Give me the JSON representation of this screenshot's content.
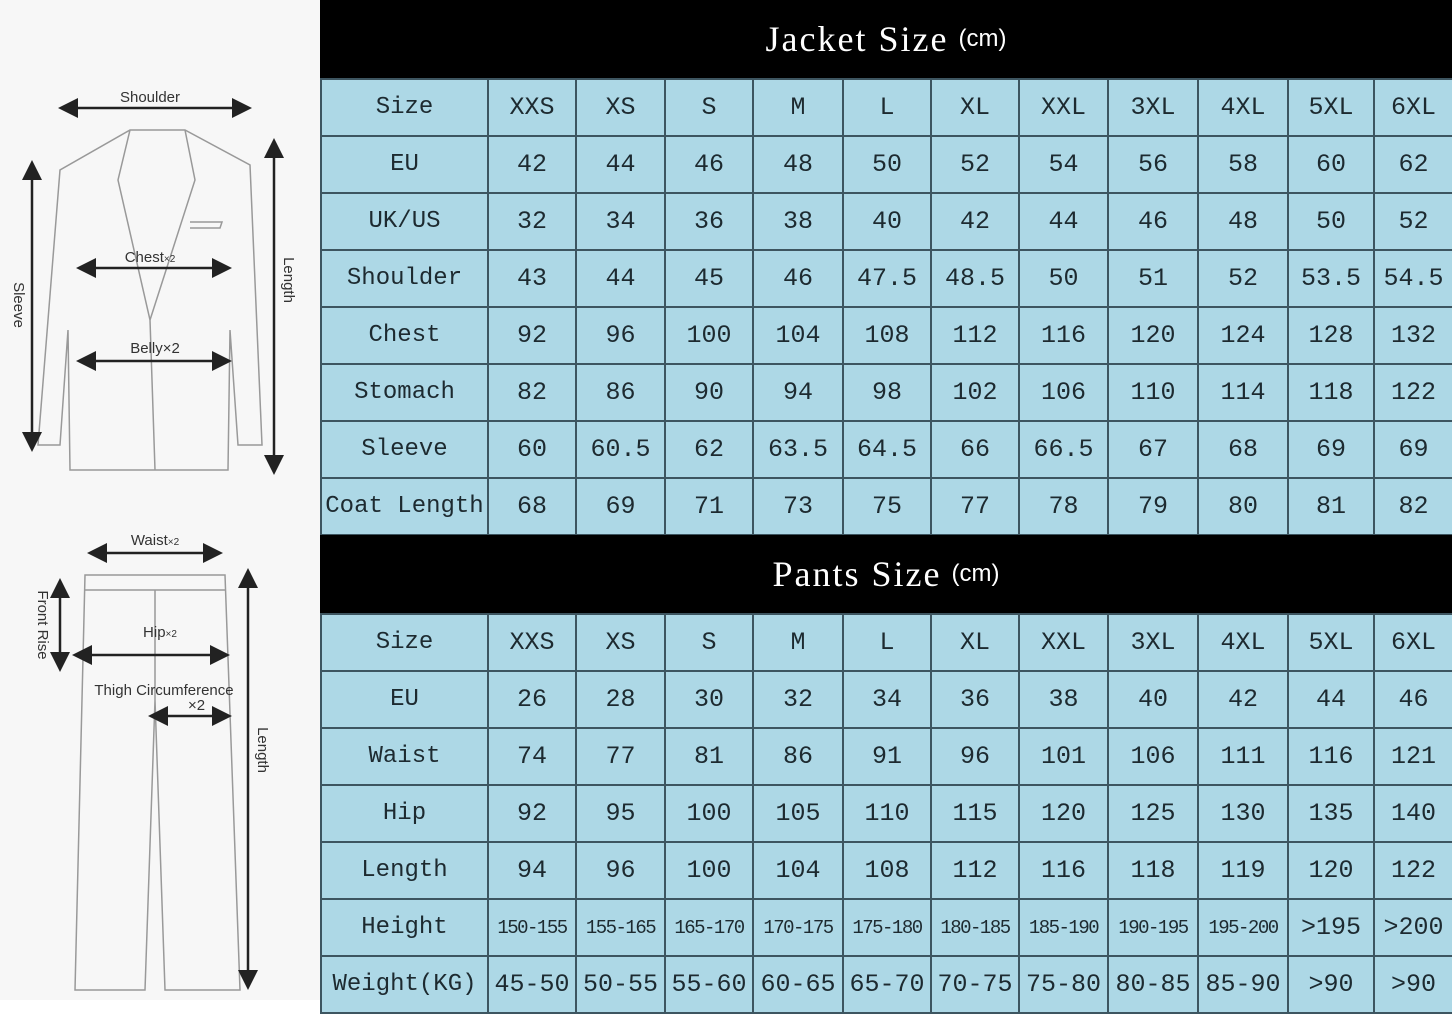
{
  "diagram": {
    "jacket_labels": {
      "shoulder": "Shoulder",
      "chest": "Chest",
      "chest_mult": "×2",
      "belly": "Belly×2",
      "sleeve": "Sleeve",
      "length": "Length"
    },
    "pants_labels": {
      "waist": "Waist",
      "waist_mult": "×2",
      "front_rise": "Front Rise",
      "hip": "Hip",
      "hip_mult": "×2",
      "thigh": "Thigh Circumference",
      "thigh_mult": "×2",
      "length": "Length"
    }
  },
  "jacket": {
    "title": "Jacket Size",
    "unit": "(cm)",
    "rows": [
      [
        "Size",
        "XXS",
        "XS",
        "S",
        "M",
        "L",
        "XL",
        "XXL",
        "3XL",
        "4XL",
        "5XL",
        "6XL"
      ],
      [
        "EU",
        "42",
        "44",
        "46",
        "48",
        "50",
        "52",
        "54",
        "56",
        "58",
        "60",
        "62"
      ],
      [
        "UK/US",
        "32",
        "34",
        "36",
        "38",
        "40",
        "42",
        "44",
        "46",
        "48",
        "50",
        "52"
      ],
      [
        "Shoulder",
        "43",
        "44",
        "45",
        "46",
        "47.5",
        "48.5",
        "50",
        "51",
        "52",
        "53.5",
        "54.5"
      ],
      [
        "Chest",
        "92",
        "96",
        "100",
        "104",
        "108",
        "112",
        "116",
        "120",
        "124",
        "128",
        "132"
      ],
      [
        "Stomach",
        "82",
        "86",
        "90",
        "94",
        "98",
        "102",
        "106",
        "110",
        "114",
        "118",
        "122"
      ],
      [
        "Sleeve",
        "60",
        "60.5",
        "62",
        "63.5",
        "64.5",
        "66",
        "66.5",
        "67",
        "68",
        "69",
        "69"
      ],
      [
        "Coat Length",
        "68",
        "69",
        "71",
        "73",
        "75",
        "77",
        "78",
        "79",
        "80",
        "81",
        "82"
      ]
    ]
  },
  "pants": {
    "title": "Pants Size",
    "unit": "(cm)",
    "rows": [
      [
        "Size",
        "XXS",
        "XS",
        "S",
        "M",
        "L",
        "XL",
        "XXL",
        "3XL",
        "4XL",
        "5XL",
        "6XL"
      ],
      [
        "EU",
        "26",
        "28",
        "30",
        "32",
        "34",
        "36",
        "38",
        "40",
        "42",
        "44",
        "46"
      ],
      [
        "Waist",
        "74",
        "77",
        "81",
        "86",
        "91",
        "96",
        "101",
        "106",
        "111",
        "116",
        "121"
      ],
      [
        "Hip",
        "92",
        "95",
        "100",
        "105",
        "110",
        "115",
        "120",
        "125",
        "130",
        "135",
        "140"
      ],
      [
        "Length",
        "94",
        "96",
        "100",
        "104",
        "108",
        "112",
        "116",
        "118",
        "119",
        "120",
        "122"
      ],
      [
        "Height",
        "150-155",
        "155-165",
        "165-170",
        "170-175",
        "175-180",
        "180-185",
        "185-190",
        "190-195",
        "195-200",
        ">195",
        ">200"
      ],
      [
        "Weight(KG)",
        "45-50",
        "50-55",
        "55-60",
        "60-65",
        "65-70",
        "70-75",
        "75-80",
        "80-85",
        "85-90",
        ">90",
        ">90"
      ]
    ]
  },
  "colors": {
    "cell": "#add8e6",
    "header": "#000000"
  }
}
